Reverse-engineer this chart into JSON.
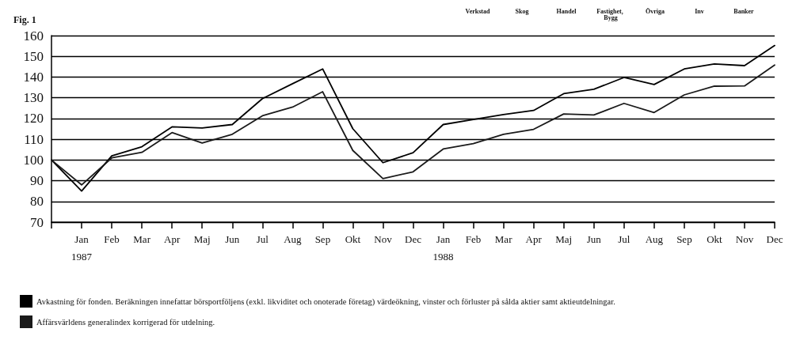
{
  "chart_data": {
    "type": "line",
    "title": "Fig. 1",
    "annotations": [
      "Verkstad",
      "Skog",
      "Handel",
      "Fastighet, Bygg",
      "Övriga",
      "Inv",
      "Banker"
    ],
    "categories": [
      null,
      "Jan\n1987",
      "Feb",
      "Mar",
      "Apr",
      "Maj",
      "Jun",
      "Jul",
      "Aug",
      "Sep",
      "Okt",
      "Nov",
      "Dec",
      "Jan\n1988",
      "Feb",
      "Mar",
      "Apr",
      "Maj",
      "Jun",
      "Jul",
      "Aug",
      "Sep",
      "Okt",
      "Nov",
      "Dec"
    ],
    "series": [
      {
        "name": "Avkastning för fonden. Beräkningen innefattar börsportföljens (exkl. likviditet och onoterade företag) värdeökning, vinster och förluster på sålda aktier samt aktieutdelningar.",
        "color": "#000000",
        "values": [
          100,
          85,
          102,
          106.4,
          116,
          115.4,
          117.1,
          129.6,
          136.8,
          143.9,
          115.1,
          98.7,
          103.5,
          117.1,
          119.5,
          121.9,
          123.9,
          132,
          134.1,
          139.8,
          136.4,
          143.9,
          146.3,
          145.5,
          155.2
        ]
      },
      {
        "name": "Affärsvärldens generalindex korrigerad för utdelning.",
        "color": "#1a1a1a",
        "values": [
          100,
          88,
          101,
          103.7,
          113.2,
          108.2,
          112.4,
          121.3,
          125.5,
          132.9,
          104.6,
          91,
          94.3,
          105.3,
          107.9,
          112.4,
          114.8,
          122.2,
          121.7,
          127.3,
          122.9,
          131.4,
          135.6,
          135.7,
          145.8
        ]
      }
    ],
    "ylim": [
      70,
      160
    ],
    "yticks": [
      70,
      80,
      90,
      100,
      110,
      120,
      130,
      140,
      150,
      160
    ],
    "grid": "y",
    "legend": "bottom left",
    "marker": "none",
    "line_style": "solid"
  }
}
